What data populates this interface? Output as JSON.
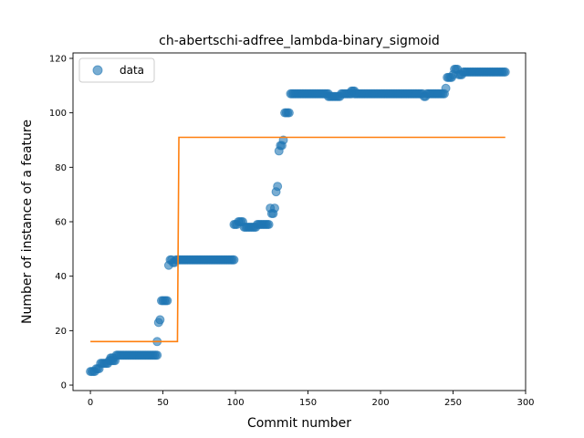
{
  "chart_data": {
    "type": "scatter",
    "title": "ch-abertschi-adfree_lambda-binary_sigmoid",
    "xlabel": "Commit number",
    "ylabel": "Number of instance of a feature",
    "xlim": [
      -12,
      300
    ],
    "ylim": [
      -2,
      122
    ],
    "x_ticks": [
      0,
      50,
      100,
      150,
      200,
      250,
      300
    ],
    "y_ticks": [
      0,
      20,
      40,
      60,
      80,
      100,
      120
    ],
    "grid": false,
    "legend_position": "top-left",
    "colors": {
      "data": "#1f77b4",
      "fit": "#ff7f0e"
    },
    "series": [
      {
        "name": "data",
        "kind": "scatter",
        "segments": [
          {
            "x0": 0,
            "x1": 3,
            "y": 5
          },
          {
            "x0": 4,
            "x1": 6,
            "y": 6
          },
          {
            "x0": 7,
            "x1": 12,
            "y": 8
          },
          {
            "x0": 13,
            "x1": 17,
            "y": 9
          },
          {
            "x0": 14,
            "x1": 16,
            "y": 10
          },
          {
            "x0": 18,
            "x1": 46,
            "y": 11
          },
          {
            "x0": 46,
            "x1": 46,
            "y": 16
          },
          {
            "x0": 47,
            "x1": 47,
            "y": 23
          },
          {
            "x0": 48,
            "x1": 48,
            "y": 24
          },
          {
            "x0": 49,
            "x1": 53,
            "y": 31
          },
          {
            "x0": 54,
            "x1": 54,
            "y": 44
          },
          {
            "x0": 55,
            "x1": 56,
            "y": 46
          },
          {
            "x0": 57,
            "x1": 58,
            "y": 45
          },
          {
            "x0": 59,
            "x1": 99,
            "y": 46
          },
          {
            "x0": 99,
            "x1": 101,
            "y": 59
          },
          {
            "x0": 102,
            "x1": 105,
            "y": 60
          },
          {
            "x0": 106,
            "x1": 114,
            "y": 58
          },
          {
            "x0": 115,
            "x1": 123,
            "y": 59
          },
          {
            "x0": 124,
            "x1": 124,
            "y": 65
          },
          {
            "x0": 125,
            "x1": 126,
            "y": 63
          },
          {
            "x0": 127,
            "x1": 127,
            "y": 65
          },
          {
            "x0": 128,
            "x1": 128,
            "y": 71
          },
          {
            "x0": 129,
            "x1": 129,
            "y": 73
          },
          {
            "x0": 130,
            "x1": 130,
            "y": 86
          },
          {
            "x0": 131,
            "x1": 132,
            "y": 88
          },
          {
            "x0": 133,
            "x1": 133,
            "y": 90
          },
          {
            "x0": 134,
            "x1": 137,
            "y": 100
          },
          {
            "x0": 138,
            "x1": 164,
            "y": 107
          },
          {
            "x0": 164,
            "x1": 172,
            "y": 106
          },
          {
            "x0": 173,
            "x1": 180,
            "y": 107
          },
          {
            "x0": 180,
            "x1": 182,
            "y": 108
          },
          {
            "x0": 182,
            "x1": 229,
            "y": 107
          },
          {
            "x0": 230,
            "x1": 231,
            "y": 106
          },
          {
            "x0": 232,
            "x1": 244,
            "y": 107
          },
          {
            "x0": 245,
            "x1": 245,
            "y": 109
          },
          {
            "x0": 246,
            "x1": 249,
            "y": 113
          },
          {
            "x0": 250,
            "x1": 250,
            "y": 114
          },
          {
            "x0": 251,
            "x1": 253,
            "y": 116
          },
          {
            "x0": 254,
            "x1": 256,
            "y": 114
          },
          {
            "x0": 257,
            "x1": 286,
            "y": 115
          }
        ]
      },
      {
        "kind": "line",
        "x": [
          0,
          60,
          61,
          286
        ],
        "y": [
          16,
          16,
          91,
          91
        ]
      }
    ]
  }
}
